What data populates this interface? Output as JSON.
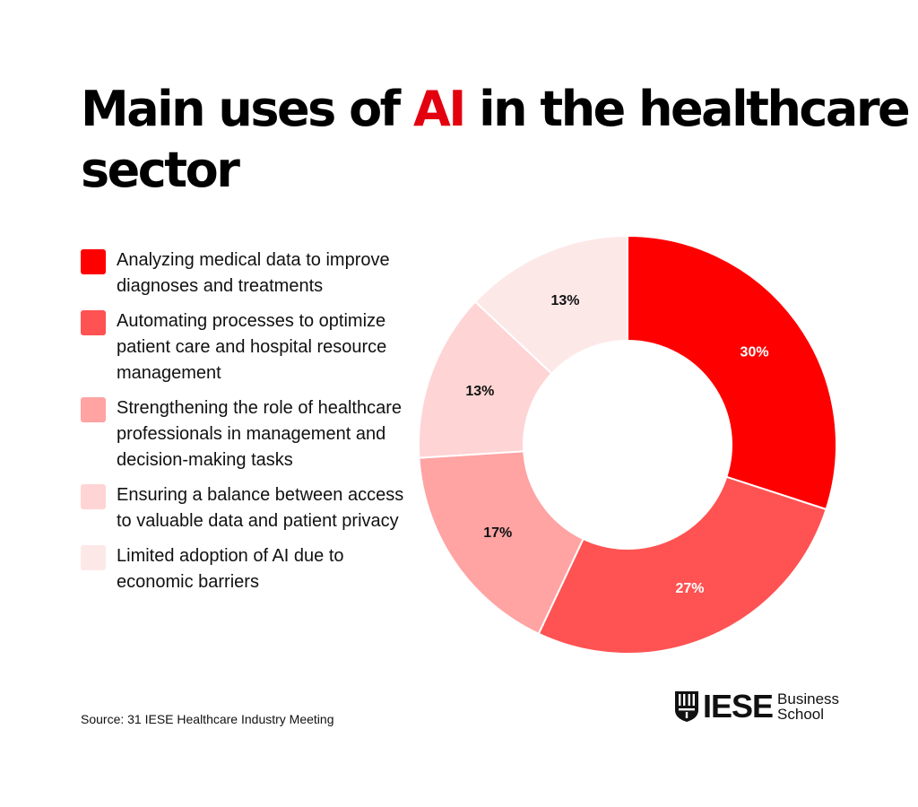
{
  "title": {
    "part1": "Main uses of ",
    "highlight": "AI",
    "part2": " in the healthcare sector"
  },
  "colors": {
    "accent": "#e3000f",
    "slices": [
      "#ff0000",
      "#ff5252",
      "#ffa3a3",
      "#ffd4d4",
      "#fde8e8"
    ],
    "label_dark": "#111111",
    "label_light": "#ffffff"
  },
  "chart_data": {
    "type": "pie",
    "title": "Main uses of AI in the healthcare sector",
    "donut": true,
    "categories": [
      "Analyzing medical data to improve diagnoses and treatments",
      "Automating processes to optimize patient care and hospital resource management",
      "Strengthening the role of healthcare professionals in management and decision-making tasks",
      "Ensuring a balance between access to valuable data and patient privacy",
      "Limited adoption of AI due to economic barriers"
    ],
    "values": [
      30,
      27,
      17,
      13,
      13
    ],
    "value_labels": [
      "30%",
      "27%",
      "17%",
      "13%",
      "13%"
    ],
    "legend_placement": "left"
  },
  "source": "Source: 31 IESE Healthcare Industry Meeting",
  "logo": {
    "name": "IESE",
    "line1": "Business",
    "line2": "School"
  }
}
